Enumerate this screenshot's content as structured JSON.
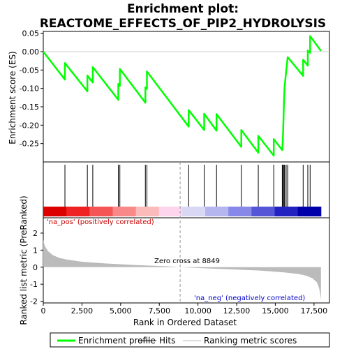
{
  "chart_data": {
    "type": "line",
    "title_line1": "Enrichment plot:",
    "title_line2": "REACTOME_EFFECTS_OF_PIP2_HYDROLYSIS",
    "top_panel": {
      "ylabel": "Enrichment score (ES)",
      "ylim": [
        -0.3,
        0.055
      ],
      "yticks": [
        0.05,
        0.0,
        -0.05,
        -0.1,
        -0.15,
        -0.2,
        -0.25
      ],
      "ytick_labels": [
        "0.05",
        "0.00",
        "-0.05",
        "-0.10",
        "-0.15",
        "-0.20",
        "-0.25"
      ],
      "series": [
        {
          "name": "Enrichment profile",
          "color": "#00ff00",
          "x": [
            0,
            1400,
            1401,
            2850,
            2851,
            3200,
            3201,
            4850,
            4851,
            4950,
            4951,
            6600,
            6601,
            6700,
            6701,
            9400,
            9401,
            10400,
            10401,
            11200,
            11201,
            12800,
            12801,
            13900,
            13901,
            14900,
            14901,
            15450,
            15500,
            15560,
            15600,
            15700,
            15800,
            16800,
            16801,
            17100,
            17101,
            17250,
            17251,
            17950
          ],
          "y": [
            0.0,
            -0.076,
            -0.031,
            -0.108,
            -0.065,
            -0.084,
            -0.042,
            -0.131,
            -0.088,
            -0.093,
            -0.047,
            -0.139,
            -0.097,
            -0.101,
            -0.054,
            -0.204,
            -0.159,
            -0.213,
            -0.169,
            -0.215,
            -0.17,
            -0.259,
            -0.213,
            -0.275,
            -0.229,
            -0.283,
            -0.238,
            -0.268,
            -0.225,
            -0.139,
            -0.096,
            -0.055,
            -0.015,
            -0.066,
            -0.022,
            -0.038,
            0.003,
            -0.003,
            0.042,
            0.002
          ]
        }
      ]
    },
    "hits_panel": {
      "hit_positions": [
        1400,
        2850,
        3200,
        4850,
        4950,
        6600,
        6700,
        9400,
        10400,
        11200,
        12800,
        13900,
        14900,
        15450,
        15500,
        15560,
        15600,
        15700,
        15800,
        16800,
        17100,
        17250
      ],
      "heat_colors": [
        "#dd0000",
        "#ee2222",
        "#f55555",
        "#f98888",
        "#fbbbbb",
        "#fdd6ee",
        "#d8d8f5",
        "#b5b5f0",
        "#8888e8",
        "#5555d8",
        "#2222c0",
        "#0000aa"
      ]
    },
    "bottom_panel": {
      "ylabel": "Ranked list metric (PreRanked)",
      "xlabel": "Rank in Ordered Dataset",
      "ylim": [
        -2.1,
        2.9
      ],
      "yticks": [
        2,
        1,
        0,
        -1,
        -2
      ],
      "ytick_labels": [
        "2",
        "1",
        "0",
        "-1",
        "-2"
      ],
      "xlim": [
        0,
        18500
      ],
      "xticks": [
        0,
        2500,
        5000,
        7500,
        10000,
        12500,
        15000,
        17500
      ],
      "xtick_labels": [
        "0",
        "2,500",
        "5,000",
        "7,500",
        "10,000",
        "12,500",
        "15,000",
        "17,500"
      ],
      "metric_x": [
        0,
        100,
        300,
        600,
        1000,
        1500,
        2500,
        4000,
        6000,
        8000,
        8849,
        10000,
        12000,
        14000,
        15500,
        16500,
        17000,
        17400,
        17700,
        17850,
        17950
      ],
      "metric_y": [
        1.6,
        1.25,
        0.95,
        0.72,
        0.55,
        0.45,
        0.32,
        0.22,
        0.12,
        0.05,
        0.0,
        -0.05,
        -0.12,
        -0.2,
        -0.3,
        -0.4,
        -0.5,
        -0.65,
        -0.9,
        -1.3,
        -1.9
      ],
      "fill_color": "#bbbbbb",
      "pos_label": "'na_pos' (positively correlated)",
      "neg_label": "'na_neg' (negatively correlated)",
      "zero_cross_label": "Zero cross at 8849",
      "zero_cross_x": 8849
    },
    "legend": [
      {
        "label": "Enrichment profile",
        "color": "#00ff00"
      },
      {
        "label": "Hits",
        "color": "#000000"
      },
      {
        "label": "Ranking metric scores",
        "color": "#bbbbbb"
      }
    ]
  }
}
